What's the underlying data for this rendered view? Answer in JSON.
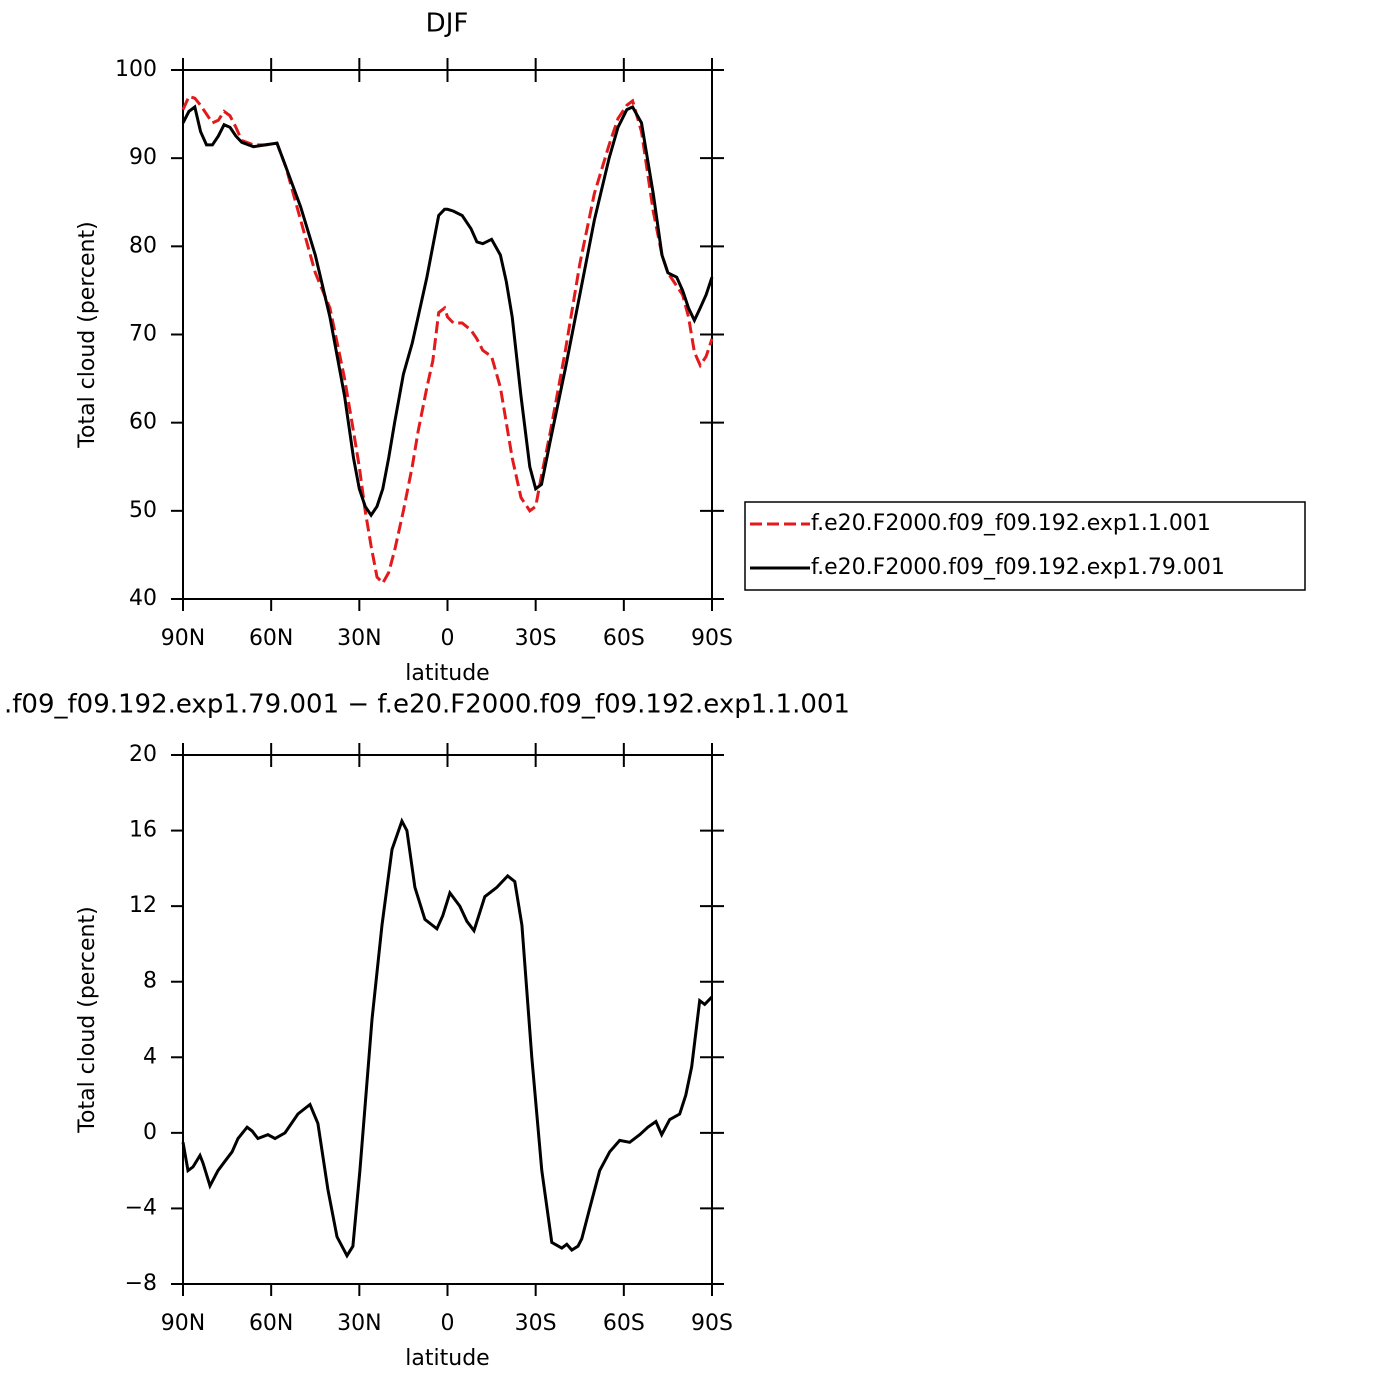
{
  "chart_data": [
    {
      "type": "line",
      "title": "DJF",
      "xlabel": "latitude",
      "ylabel": "Total cloud (percent)",
      "legend": "right",
      "x": [
        90,
        88,
        86,
        84,
        82,
        80,
        78,
        76,
        74,
        72,
        70,
        66,
        62,
        58,
        55,
        50,
        45,
        40,
        35,
        32,
        30,
        28,
        26,
        24,
        22,
        20,
        18,
        15,
        12,
        10,
        7,
        5,
        3,
        1,
        0,
        -2,
        -5,
        -8,
        -10,
        -12,
        -15,
        -18,
        -20,
        -22,
        -25,
        -28,
        -30,
        -32,
        -35,
        -40,
        -45,
        -50,
        -55,
        -58,
        -61,
        -63,
        -66,
        -70,
        -73,
        -75,
        -78,
        -80,
        -82,
        -84,
        -86,
        -88,
        -90
      ],
      "series": [
        {
          "name": "f.e20.F2000.f09_f09.192.exp1.1.001",
          "color": "#e31a1c",
          "linestyle": "dashed",
          "values": [
            95.5,
            97,
            96.8,
            96,
            95,
            94,
            94.3,
            95.3,
            94.8,
            93.5,
            92,
            91.5,
            91.5,
            91.7,
            89,
            83,
            77,
            73,
            65,
            59,
            55,
            50,
            46,
            42.5,
            41.8,
            43,
            45.5,
            50,
            55,
            59,
            64,
            67,
            72.5,
            73,
            72,
            71.3,
            71.3,
            70.5,
            69.5,
            68.2,
            67.5,
            64,
            60,
            56,
            51.5,
            50,
            50.5,
            54,
            59,
            68,
            78,
            86,
            91.5,
            94.5,
            96,
            96.5,
            93,
            84,
            79,
            77,
            75.5,
            74.5,
            72,
            68,
            66.5,
            67.5,
            69.5
          ]
        },
        {
          "name": "f.e20.F2000.f09_f09.192.exp1.79.001",
          "color": "#000000",
          "linestyle": "solid",
          "values": [
            94,
            95.3,
            95.8,
            93,
            91.5,
            91.5,
            92.5,
            93.8,
            93.5,
            92.5,
            91.8,
            91.3,
            91.5,
            91.7,
            89,
            84.5,
            79,
            72,
            63,
            56,
            52.5,
            50.5,
            49.5,
            50.5,
            52.5,
            56,
            60,
            65.5,
            69,
            72,
            76.5,
            80,
            83.5,
            84.2,
            84.2,
            84,
            83.5,
            82,
            80.5,
            80.3,
            80.8,
            79,
            76,
            72,
            63,
            55,
            52.5,
            53,
            58,
            66,
            74.5,
            83,
            90,
            93.5,
            95.5,
            95.8,
            94,
            86,
            79,
            77,
            76.5,
            75,
            73,
            71.6,
            73,
            74.5,
            76.5
          ]
        }
      ],
      "xlim": [
        90,
        -90
      ],
      "xticks": [
        {
          "value": 90,
          "label": "90N"
        },
        {
          "value": 60,
          "label": "60N"
        },
        {
          "value": 30,
          "label": "30N"
        },
        0,
        {
          "value": -30,
          "label": "30S"
        },
        {
          "value": -60,
          "label": "60S"
        },
        {
          "value": -90,
          "label": "90S"
        }
      ],
      "ylim": [
        40,
        100
      ],
      "yticks": [
        40,
        50,
        60,
        70,
        80,
        90,
        100
      ]
    },
    {
      "type": "line",
      "title": ".f09_f09.192.exp1.79.001  −  f.e20.F2000.f09_f09.192.exp1.1.001",
      "xlabel": "latitude",
      "ylabel": "Total cloud (percent)",
      "x": [
        90,
        88.3,
        86.6,
        84.2,
        83.2,
        80.8,
        78.1,
        75.7,
        73.3,
        71.3,
        68.2,
        66.5,
        64.5,
        61.1,
        58.7,
        55.3,
        50.9,
        46.8,
        44.1,
        40.7,
        37.6,
        34.2,
        32.2,
        29.8,
        25.7,
        22.3,
        18.9,
        15.5,
        13.8,
        11.1,
        7.7,
        3.6,
        1.6,
        -0.8,
        -4.2,
        -6.6,
        -9,
        -12.7,
        -16.8,
        -20.5,
        -22.9,
        -25.3,
        -28.7,
        -32.1,
        -35.5,
        -38.9,
        -40.6,
        -42.3,
        -44.4,
        -45.7,
        -48.4,
        -51.8,
        -55.2,
        -58.6,
        -62,
        -65.4,
        -68.2,
        -70.9,
        -72.9,
        -75.6,
        -79,
        -81.1,
        -83.1,
        -85.8,
        -87.5,
        -90
      ],
      "series": [
        {
          "color": "#000000",
          "linestyle": "solid",
          "values": [
            -0.5,
            -2,
            -1.8,
            -1.2,
            -1.6,
            -2.8,
            -2,
            -1.5,
            -1,
            -0.3,
            0.3,
            0.1,
            -0.3,
            -0.1,
            -0.3,
            0,
            1,
            1.5,
            0.5,
            -3,
            -5.5,
            -6.5,
            -6,
            -2,
            6,
            11,
            15,
            16.5,
            16,
            13,
            11.3,
            10.8,
            11.5,
            12.7,
            12,
            11.2,
            10.7,
            12.5,
            13,
            13.6,
            13.3,
            11,
            4,
            -2,
            -5.8,
            -6.1,
            -5.9,
            -6.2,
            -6,
            -5.6,
            -4,
            -2,
            -1,
            -0.4,
            -0.5,
            -0.1,
            0.3,
            0.6,
            -0.1,
            0.7,
            1,
            2,
            3.5,
            7,
            6.8,
            7.2
          ]
        }
      ],
      "xlim": [
        90,
        -90
      ],
      "xticks": [
        {
          "value": 90,
          "label": "90N"
        },
        {
          "value": 60,
          "label": "60N"
        },
        {
          "value": 30,
          "label": "30N"
        },
        0,
        {
          "value": -30,
          "label": "30S"
        },
        {
          "value": -60,
          "label": "60S"
        },
        {
          "value": -90,
          "label": "90S"
        }
      ],
      "ylim": [
        -8,
        20
      ],
      "yticks": [
        {
          "value": -8,
          "label": "−8"
        },
        {
          "value": -4,
          "label": "−4"
        },
        0,
        4,
        8,
        12,
        16,
        20
      ]
    }
  ]
}
